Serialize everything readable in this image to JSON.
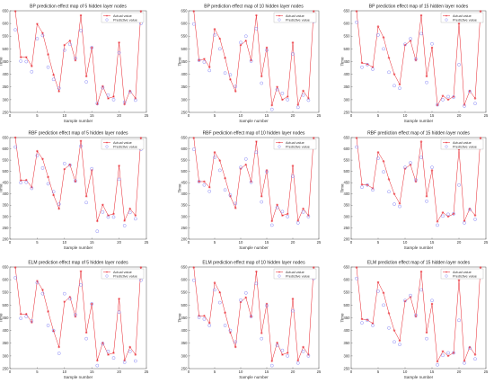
{
  "chart_data": [
    {
      "type": "line",
      "title": "BP prediction effect map of 5 hidden layer nodes",
      "xlabel": "Sample number",
      "ylabel": "Time",
      "xlim": [
        0,
        25
      ],
      "ylim": [
        250,
        650
      ],
      "xticks": [
        "0",
        "5",
        "10",
        "15",
        "20",
        "25"
      ],
      "yticks": [
        "250",
        "300",
        "350",
        "400",
        "450",
        "500",
        "550",
        "600",
        "650"
      ],
      "grid": false,
      "legend": "top-right",
      "x": [
        1,
        2,
        3,
        4,
        5,
        6,
        7,
        8,
        9,
        10,
        11,
        12,
        13,
        14,
        15,
        16,
        17,
        18,
        19,
        20,
        21,
        22,
        23,
        24
      ],
      "series": [
        {
          "name": "Actual value",
          "color": "#e8212a",
          "marker": "star",
          "values": [
            648,
            467,
            467,
            432,
            598,
            562,
            478,
            398,
            333,
            515,
            532,
            455,
            632,
            392,
            505,
            282,
            353,
            305,
            312,
            525,
            282,
            335,
            305,
            648
          ]
        },
        {
          "name": "Predictive value",
          "color": "#7b7bf4",
          "marker": "circle",
          "values": [
            575,
            452,
            450,
            410,
            540,
            553,
            428,
            380,
            345,
            495,
            518,
            463,
            572,
            370,
            505,
            285,
            347,
            318,
            300,
            485,
            290,
            330,
            298,
            600
          ]
        }
      ]
    },
    {
      "type": "line",
      "title": "BP prediction effect map of 10 hidden layer nodes",
      "xlabel": "Sample number",
      "ylabel": "Time",
      "xlim": [
        0,
        25
      ],
      "ylim": [
        250,
        650
      ],
      "xticks": [
        "0",
        "5",
        "10",
        "15",
        "20",
        "25"
      ],
      "yticks": [
        "250",
        "300",
        "350",
        "400",
        "450",
        "500",
        "550",
        "600",
        "650"
      ],
      "grid": false,
      "legend": "top-right",
      "x": [
        1,
        2,
        3,
        4,
        5,
        6,
        7,
        8,
        9,
        10,
        11,
        12,
        13,
        14,
        15,
        16,
        17,
        18,
        19,
        20,
        21,
        22,
        23,
        24
      ],
      "series": [
        {
          "name": "Actual value",
          "color": "#e8212a",
          "marker": "star",
          "values": [
            648,
            455,
            460,
            428,
            578,
            540,
            465,
            380,
            333,
            515,
            532,
            455,
            632,
            392,
            505,
            278,
            350,
            300,
            312,
            525,
            280,
            335,
            305,
            648
          ]
        },
        {
          "name": "Predictive value",
          "color": "#7b7bf4",
          "marker": "circle",
          "values": [
            598,
            455,
            448,
            415,
            555,
            500,
            405,
            398,
            352,
            525,
            550,
            452,
            580,
            365,
            495,
            262,
            340,
            325,
            300,
            480,
            270,
            318,
            298,
            608
          ]
        }
      ]
    },
    {
      "type": "line",
      "title": "BP prediction effect map of 15 hidden layer nodes",
      "xlabel": "Sample number",
      "ylabel": "Time",
      "xlim": [
        0,
        25
      ],
      "ylim": [
        250,
        650
      ],
      "xticks": [
        "0",
        "5",
        "10",
        "15",
        "20",
        "25"
      ],
      "yticks": [
        "250",
        "300",
        "350",
        "400",
        "450",
        "500",
        "550",
        "600",
        "650"
      ],
      "grid": false,
      "legend": "top-right",
      "x": [
        1,
        2,
        3,
        4,
        5,
        6,
        7,
        8,
        9,
        10,
        11,
        12,
        13,
        14,
        15,
        16,
        17,
        18,
        19,
        20,
        21,
        22,
        23,
        24
      ],
      "series": [
        {
          "name": "Actual value",
          "color": "#e8212a",
          "marker": "star",
          "values": [
            648,
            445,
            440,
            428,
            588,
            545,
            465,
            400,
            360,
            515,
            532,
            455,
            632,
            392,
            505,
            278,
            315,
            300,
            312,
            600,
            280,
            335,
            305,
            648
          ]
        },
        {
          "name": "Predictive value",
          "color": "#7b7bf4",
          "marker": "circle",
          "values": [
            605,
            428,
            438,
            420,
            555,
            500,
            408,
            355,
            345,
            518,
            540,
            460,
            560,
            368,
            520,
            280,
            300,
            312,
            310,
            438,
            275,
            332,
            285,
            612
          ]
        }
      ]
    },
    {
      "type": "line",
      "title": "RBF prediction effect map of 5 hidden layer nodes",
      "xlabel": "Sample number",
      "ylabel": "Time",
      "xlim": [
        0,
        25
      ],
      "ylim": [
        200,
        650
      ],
      "xticks": [
        "0",
        "5",
        "10",
        "15",
        "20",
        "25"
      ],
      "yticks": [
        "200",
        "250",
        "300",
        "350",
        "400",
        "450",
        "500",
        "550",
        "600",
        "650"
      ],
      "grid": false,
      "legend": "top-right",
      "x": [
        1,
        2,
        3,
        4,
        5,
        6,
        7,
        8,
        9,
        10,
        11,
        12,
        13,
        14,
        15,
        16,
        17,
        18,
        19,
        20,
        21,
        22,
        23,
        24
      ],
      "series": [
        {
          "name": "Actual value",
          "color": "#e8212a",
          "marker": "star",
          "values": [
            650,
            460,
            462,
            430,
            590,
            555,
            475,
            395,
            335,
            510,
            530,
            455,
            635,
            390,
            505,
            280,
            352,
            305,
            312,
            525,
            282,
            335,
            305,
            648
          ]
        },
        {
          "name": "Predictive value",
          "color": "#7b7bf4",
          "marker": "circle",
          "values": [
            608,
            450,
            452,
            425,
            570,
            515,
            445,
            410,
            355,
            535,
            528,
            458,
            612,
            362,
            512,
            235,
            320,
            298,
            298,
            465,
            260,
            318,
            290,
            598
          ]
        }
      ]
    },
    {
      "type": "line",
      "title": "RBF prediction effect map of 10 hidden layer nodes",
      "xlabel": "Sample number",
      "ylabel": "Time",
      "xlim": [
        0,
        25
      ],
      "ylim": [
        200,
        650
      ],
      "xticks": [
        "0",
        "5",
        "10",
        "15",
        "20",
        "25"
      ],
      "yticks": [
        "200",
        "250",
        "300",
        "350",
        "400",
        "450",
        "500",
        "550",
        "600",
        "650"
      ],
      "grid": false,
      "legend": "top-right",
      "x": [
        1,
        2,
        3,
        4,
        5,
        6,
        7,
        8,
        9,
        10,
        11,
        12,
        13,
        14,
        15,
        16,
        17,
        18,
        19,
        20,
        21,
        22,
        23,
        24
      ],
      "series": [
        {
          "name": "Actual value",
          "color": "#e8212a",
          "marker": "star",
          "values": [
            648,
            455,
            455,
            430,
            585,
            548,
            470,
            390,
            338,
            512,
            530,
            455,
            632,
            390,
            505,
            280,
            352,
            305,
            312,
            525,
            282,
            335,
            305,
            648
          ]
        },
        {
          "name": "Predictive value",
          "color": "#7b7bf4",
          "marker": "circle",
          "values": [
            598,
            455,
            440,
            412,
            562,
            505,
            418,
            395,
            358,
            518,
            555,
            452,
            585,
            365,
            498,
            262,
            340,
            322,
            300,
            478,
            272,
            320,
            300,
            608
          ]
        }
      ]
    },
    {
      "type": "line",
      "title": "RBF prediction effect map of 15 hidden layer nodes",
      "xlabel": "Sample number",
      "ylabel": "Time",
      "xlim": [
        0,
        25
      ],
      "ylim": [
        200,
        650
      ],
      "xticks": [
        "0",
        "5",
        "10",
        "15",
        "20",
        "25"
      ],
      "yticks": [
        "200",
        "250",
        "300",
        "350",
        "400",
        "450",
        "500",
        "550",
        "600",
        "650"
      ],
      "grid": false,
      "legend": "top-right",
      "x": [
        1,
        2,
        3,
        4,
        5,
        6,
        7,
        8,
        9,
        10,
        11,
        12,
        13,
        14,
        15,
        16,
        17,
        18,
        19,
        20,
        21,
        22,
        23,
        24
      ],
      "series": [
        {
          "name": "Actual value",
          "color": "#e8212a",
          "marker": "star",
          "values": [
            648,
            442,
            440,
            425,
            585,
            545,
            465,
            400,
            358,
            512,
            530,
            455,
            632,
            390,
            505,
            278,
            318,
            300,
            312,
            598,
            280,
            335,
            305,
            648
          ]
        },
        {
          "name": "Predictive value",
          "color": "#7b7bf4",
          "marker": "circle",
          "values": [
            608,
            430,
            440,
            418,
            558,
            498,
            410,
            355,
            345,
            518,
            538,
            462,
            562,
            368,
            518,
            262,
            302,
            310,
            312,
            440,
            272,
            330,
            288,
            612
          ]
        }
      ]
    },
    {
      "type": "line",
      "title": "ELM prediction effect map of 5 hidden layer nodes",
      "xlabel": "Sample number",
      "ylabel": "Time",
      "xlim": [
        0,
        25
      ],
      "ylim": [
        250,
        650
      ],
      "xticks": [
        "0",
        "5",
        "10",
        "15",
        "20",
        "25"
      ],
      "yticks": [
        "250",
        "300",
        "350",
        "400",
        "450",
        "500",
        "550",
        "600",
        "650"
      ],
      "grid": false,
      "legend": "top-right",
      "x": [
        1,
        2,
        3,
        4,
        5,
        6,
        7,
        8,
        9,
        10,
        11,
        12,
        13,
        14,
        15,
        16,
        17,
        18,
        19,
        20,
        21,
        22,
        23,
        24
      ],
      "series": [
        {
          "name": "Actual value",
          "color": "#e8212a",
          "marker": "star",
          "values": [
            648,
            465,
            465,
            432,
            595,
            560,
            475,
            398,
            335,
            513,
            532,
            455,
            633,
            392,
            505,
            282,
            352,
            305,
            312,
            525,
            282,
            335,
            305,
            648
          ]
        },
        {
          "name": "Predictive value",
          "color": "#7b7bf4",
          "marker": "circle",
          "values": [
            608,
            448,
            455,
            438,
            588,
            545,
            420,
            400,
            310,
            545,
            525,
            462,
            580,
            368,
            505,
            262,
            348,
            318,
            292,
            472,
            275,
            318,
            280,
            598
          ]
        }
      ]
    },
    {
      "type": "line",
      "title": "ELM prediction effect map of 10 hidden layer nodes",
      "xlabel": "Sample number",
      "ylabel": "Time",
      "xlim": [
        0,
        25
      ],
      "ylim": [
        250,
        650
      ],
      "xticks": [
        "0",
        "5",
        "10",
        "15",
        "20",
        "25"
      ],
      "yticks": [
        "250",
        "300",
        "350",
        "400",
        "450",
        "500",
        "550",
        "600",
        "650"
      ],
      "grid": false,
      "legend": "top-right",
      "x": [
        1,
        2,
        3,
        4,
        5,
        6,
        7,
        8,
        9,
        10,
        11,
        12,
        13,
        14,
        15,
        16,
        17,
        18,
        19,
        20,
        21,
        22,
        23,
        24
      ],
      "series": [
        {
          "name": "Actual value",
          "color": "#e8212a",
          "marker": "star",
          "values": [
            648,
            458,
            458,
            430,
            588,
            550,
            470,
            392,
            335,
            512,
            530,
            455,
            632,
            390,
            505,
            280,
            352,
            305,
            312,
            525,
            282,
            335,
            305,
            648
          ]
        },
        {
          "name": "Predictive value",
          "color": "#7b7bf4",
          "marker": "circle",
          "values": [
            598,
            452,
            445,
            420,
            560,
            510,
            420,
            400,
            355,
            520,
            548,
            455,
            585,
            368,
            498,
            262,
            342,
            322,
            300,
            478,
            272,
            318,
            300,
            605
          ]
        }
      ]
    },
    {
      "type": "line",
      "title": "ELM prediction effect map of 15 hidden layer nodes",
      "xlabel": "Sample number",
      "ylabel": "Time",
      "xlim": [
        0,
        25
      ],
      "ylim": [
        250,
        650
      ],
      "xticks": [
        "0",
        "5",
        "10",
        "15",
        "20",
        "25"
      ],
      "yticks": [
        "250",
        "300",
        "350",
        "400",
        "450",
        "500",
        "550",
        "600",
        "650"
      ],
      "grid": false,
      "legend": "top-right",
      "x": [
        1,
        2,
        3,
        4,
        5,
        6,
        7,
        8,
        9,
        10,
        11,
        12,
        13,
        14,
        15,
        16,
        17,
        18,
        19,
        20,
        21,
        22,
        23,
        24
      ],
      "series": [
        {
          "name": "Actual value",
          "color": "#e8212a",
          "marker": "star",
          "values": [
            648,
            445,
            442,
            428,
            590,
            548,
            468,
            400,
            360,
            515,
            532,
            455,
            632,
            392,
            505,
            278,
            318,
            300,
            312,
            598,
            280,
            335,
            305,
            648
          ]
        },
        {
          "name": "Predictive value",
          "color": "#7b7bf4",
          "marker": "circle",
          "values": [
            605,
            430,
            440,
            420,
            555,
            500,
            410,
            355,
            345,
            518,
            538,
            460,
            560,
            368,
            518,
            265,
            302,
            312,
            312,
            440,
            272,
            330,
            288,
            612
          ]
        }
      ]
    }
  ]
}
